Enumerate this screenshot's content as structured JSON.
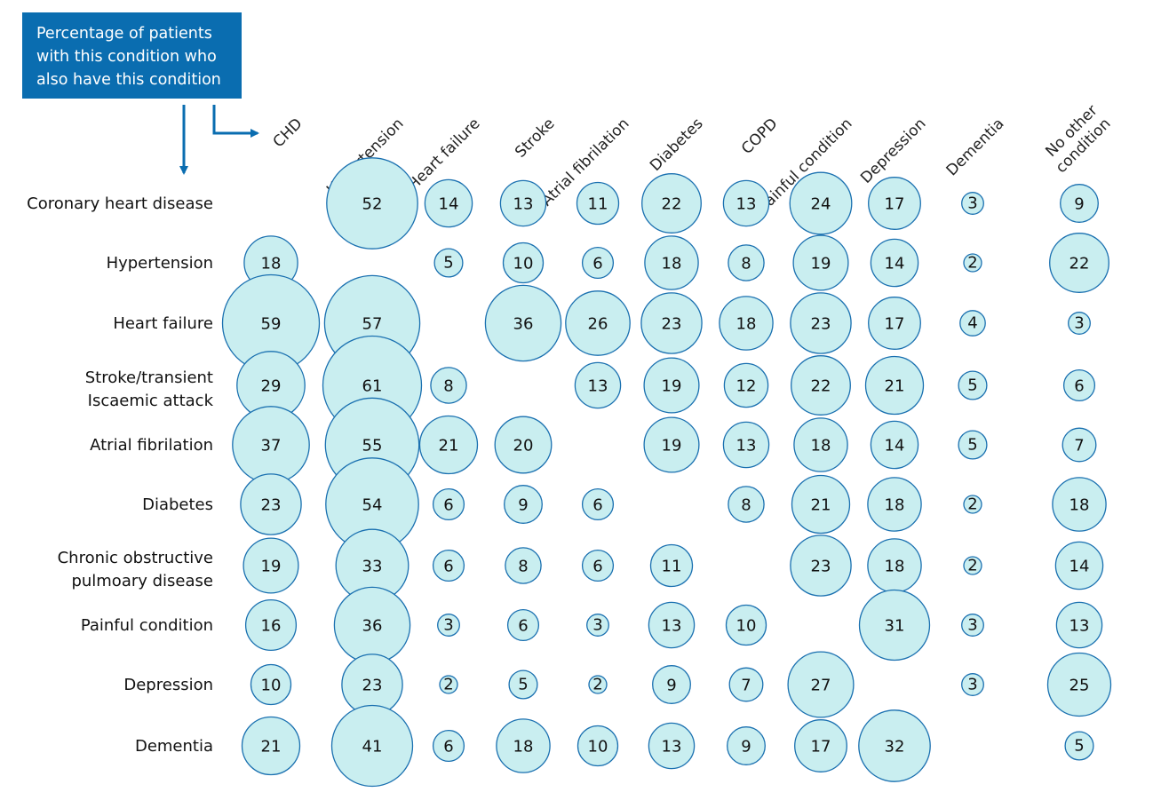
{
  "legend": {
    "lines": [
      "Percentage of patients",
      "with this condition who",
      "also have this condition"
    ],
    "arrow_color": "#0a6db0"
  },
  "colors": {
    "box": "#0a6db0",
    "bubble_fill": "#c9eef0",
    "bubble_stroke": "#1a70b0"
  },
  "chart_data": {
    "type": "bubble-matrix",
    "columns": [
      [
        "CHD"
      ],
      [
        "Hypertension"
      ],
      [
        "Heart failure"
      ],
      [
        "Stroke"
      ],
      [
        "Atrial fibrilation"
      ],
      [
        "Diabetes"
      ],
      [
        "COPD"
      ],
      [
        "Painful condition"
      ],
      [
        "Depression"
      ],
      [
        "Dementia"
      ],
      [
        "No other",
        "condition"
      ]
    ],
    "rows": [
      {
        "label": [
          "Coronary heart disease"
        ],
        "values": [
          null,
          52,
          14,
          13,
          11,
          22,
          13,
          24,
          17,
          3,
          9
        ]
      },
      {
        "label": [
          "Hypertension"
        ],
        "values": [
          18,
          null,
          5,
          10,
          6,
          18,
          8,
          19,
          14,
          2,
          22
        ]
      },
      {
        "label": [
          "Heart failure"
        ],
        "values": [
          59,
          57,
          null,
          36,
          26,
          23,
          18,
          23,
          17,
          4,
          3
        ]
      },
      {
        "label": [
          "Stroke/transient",
          "Iscaemic attack"
        ],
        "values": [
          29,
          61,
          8,
          null,
          13,
          19,
          12,
          22,
          21,
          5,
          6
        ]
      },
      {
        "label": [
          "Atrial fibrilation"
        ],
        "values": [
          37,
          55,
          21,
          20,
          null,
          19,
          13,
          18,
          14,
          5,
          7
        ]
      },
      {
        "label": [
          "Diabetes"
        ],
        "values": [
          23,
          54,
          6,
          9,
          6,
          null,
          8,
          21,
          18,
          2,
          18
        ]
      },
      {
        "label": [
          "Chronic obstructive",
          "pulmoary disease"
        ],
        "values": [
          19,
          33,
          6,
          8,
          6,
          11,
          null,
          23,
          18,
          2,
          14
        ]
      },
      {
        "label": [
          "Painful condition"
        ],
        "values": [
          16,
          36,
          3,
          6,
          3,
          13,
          10,
          null,
          31,
          3,
          13
        ]
      },
      {
        "label": [
          "Depression"
        ],
        "values": [
          10,
          23,
          2,
          5,
          2,
          9,
          7,
          27,
          null,
          3,
          25
        ]
      },
      {
        "label": [
          "Dementia"
        ],
        "values": [
          21,
          41,
          6,
          18,
          10,
          13,
          9,
          17,
          32,
          null,
          5
        ]
      }
    ]
  }
}
